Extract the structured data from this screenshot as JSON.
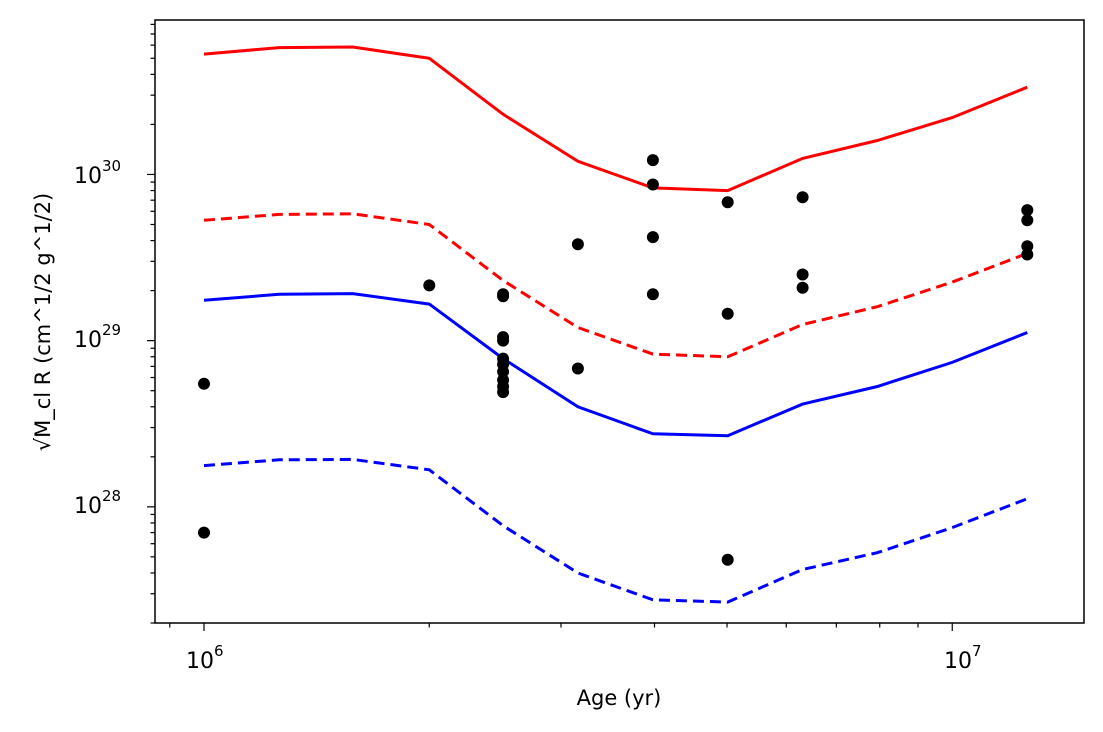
{
  "chart_data": {
    "type": "scatter",
    "xlabel": "Age (yr)",
    "ylabel": "√M_cl R (cm^1/2 g^1/2)",
    "xscale": "log",
    "yscale": "log",
    "xlim": [
      860000,
      15000000
    ],
    "ylim": [
      2e+27,
      8.5e+30
    ],
    "grid": false,
    "legend": "none",
    "x_ticks": [
      {
        "value": 1000000,
        "base": "10",
        "exp": "6"
      },
      {
        "value": 10000000,
        "base": "10",
        "exp": "7"
      }
    ],
    "y_ticks": [
      {
        "value": 1e+28,
        "base": "10",
        "exp": "28"
      },
      {
        "value": 1e+29,
        "base": "10",
        "exp": "29"
      },
      {
        "value": 1e+30,
        "base": "10",
        "exp": "30"
      }
    ],
    "line_x": [
      1000000,
      1260000,
      1580000,
      2000000,
      2510000,
      3160000,
      3980000,
      5010000,
      6310000,
      7940000,
      10000000,
      12600000
    ],
    "series": [
      {
        "color": "#ff0000",
        "style": "solid",
        "values": [
          5.3e+30,
          5.8e+30,
          5.85e+30,
          5e+30,
          2.3e+30,
          1.2e+30,
          8.3e+29,
          8e+29,
          1.25e+30,
          1.6e+30,
          2.2e+30,
          3.35e+30
        ]
      },
      {
        "color": "#ff0000",
        "style": "dashed",
        "values": [
          5.3e+29,
          5.75e+29,
          5.8e+29,
          5e+29,
          2.3e+29,
          1.2e+29,
          8.3e+28,
          8e+28,
          1.25e+29,
          1.6e+29,
          2.25e+29,
          3.35e+29
        ]
      },
      {
        "color": "#0000ff",
        "style": "solid",
        "values": [
          1.75e+29,
          1.9e+29,
          1.92e+29,
          1.66e+29,
          7.8e+28,
          4e+28,
          2.75e+28,
          2.68e+28,
          4.15e+28,
          5.3e+28,
          7.4e+28,
          1.12e+29
        ]
      },
      {
        "color": "#0000ff",
        "style": "dashed",
        "values": [
          1.77e+28,
          1.92e+28,
          1.93e+28,
          1.67e+28,
          7.7e+27,
          4e+27,
          2.76e+27,
          2.67e+27,
          4.2e+27,
          5.3e+27,
          7.5e+27,
          1.12e+28
        ]
      }
    ],
    "points": [
      {
        "x": 1000000,
        "y": 5.5e+28
      },
      {
        "x": 1000000,
        "y": 7e+27
      },
      {
        "x": 2000000,
        "y": 2.15e+29
      },
      {
        "x": 2510000,
        "y": 1.9e+29
      },
      {
        "x": 2510000,
        "y": 1.85e+29
      },
      {
        "x": 2510000,
        "y": 1.05e+29
      },
      {
        "x": 2510000,
        "y": 1e+29
      },
      {
        "x": 2510000,
        "y": 7.8e+28
      },
      {
        "x": 2510000,
        "y": 7.2e+28
      },
      {
        "x": 2510000,
        "y": 6.5e+28
      },
      {
        "x": 2510000,
        "y": 5.8e+28
      },
      {
        "x": 2510000,
        "y": 5.3e+28
      },
      {
        "x": 2510000,
        "y": 4.9e+28
      },
      {
        "x": 3160000,
        "y": 3.8e+29
      },
      {
        "x": 3160000,
        "y": 6.8e+28
      },
      {
        "x": 3980000,
        "y": 1.22e+30
      },
      {
        "x": 3980000,
        "y": 8.7e+29
      },
      {
        "x": 3980000,
        "y": 4.2e+29
      },
      {
        "x": 3980000,
        "y": 1.9e+29
      },
      {
        "x": 5010000,
        "y": 6.8e+29
      },
      {
        "x": 5010000,
        "y": 1.45e+29
      },
      {
        "x": 5010000,
        "y": 4.8e+27
      },
      {
        "x": 6310000,
        "y": 7.3e+29
      },
      {
        "x": 6310000,
        "y": 2.5e+29
      },
      {
        "x": 6310000,
        "y": 2.08e+29
      },
      {
        "x": 12600000,
        "y": 6.1e+29
      },
      {
        "x": 12600000,
        "y": 5.3e+29
      },
      {
        "x": 12600000,
        "y": 3.7e+29
      },
      {
        "x": 12600000,
        "y": 3.3e+29
      }
    ]
  }
}
